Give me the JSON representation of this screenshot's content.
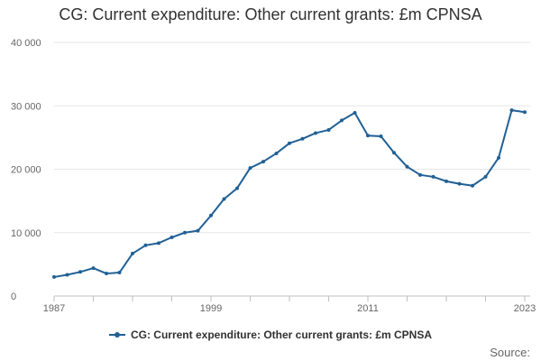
{
  "chart_data": {
    "type": "line",
    "title": "CG: Current expenditure: Other current grants: £m CPNSA",
    "xlabel": "",
    "ylabel": "",
    "x": [
      1987,
      1988,
      1989,
      1990,
      1991,
      1992,
      1993,
      1994,
      1995,
      1996,
      1997,
      1998,
      1999,
      2000,
      2001,
      2002,
      2003,
      2004,
      2005,
      2006,
      2007,
      2008,
      2009,
      2010,
      2011,
      2012,
      2013,
      2014,
      2015,
      2016,
      2017,
      2018,
      2019,
      2020,
      2021,
      2022,
      2023
    ],
    "series": [
      {
        "name": "CG: Current expenditure: Other current grants: £m CPNSA",
        "color": "#206095",
        "values": [
          3000,
          3350,
          3800,
          4400,
          3550,
          3700,
          6700,
          8000,
          8350,
          9250,
          10000,
          10300,
          12700,
          15300,
          17000,
          20200,
          21200,
          22500,
          24100,
          24800,
          25700,
          26200,
          27700,
          28900,
          25300,
          25200,
          22600,
          20400,
          19100,
          18800,
          18100,
          17700,
          17400,
          18800,
          21800,
          29300,
          29000
        ]
      }
    ],
    "xticks": [
      "1987",
      "1999",
      "2011",
      "2023"
    ],
    "yticks": [
      "0",
      "10 000",
      "20 000",
      "30 000",
      "40 000"
    ],
    "xlim": [
      1987,
      2023
    ],
    "ylim": [
      0,
      40000
    ],
    "grid": true,
    "legend_position": "bottom"
  },
  "source_label": "Source:"
}
